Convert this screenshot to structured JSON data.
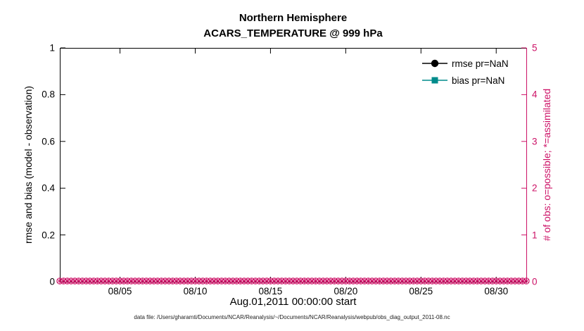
{
  "chart_data": {
    "type": "line",
    "title": "Northern Hemisphere",
    "subtitle": "ACARS_TEMPERATURE @ 999 hPa",
    "xlabel": "Aug.01,2011 00:00:00 start",
    "x_axis": {
      "range_days": [
        0,
        31
      ],
      "start_label": "Aug.01,2011 00:00:00",
      "tick_days": [
        4,
        9,
        14,
        19,
        24,
        29
      ],
      "tick_labels": [
        "08/05",
        "08/10",
        "08/15",
        "08/20",
        "08/25",
        "08/30"
      ]
    },
    "left_axis": {
      "ylabel": "rmse and bias (model - observation)",
      "ylim": [
        0,
        1
      ],
      "tick_values": [
        0,
        0.2,
        0.4,
        0.6,
        0.8,
        1
      ],
      "tick_labels": [
        "0",
        "0.2",
        "0.4",
        "0.6",
        "0.8",
        "1"
      ],
      "color": "#000000"
    },
    "right_axis": {
      "ylabel": "# of obs: o=possible; *=assimilated",
      "ylim": [
        0,
        5
      ],
      "tick_values": [
        0,
        1,
        2,
        3,
        4,
        5
      ],
      "tick_labels": [
        "0",
        "1",
        "2",
        "3",
        "4",
        "5"
      ],
      "color": "#CC1166"
    },
    "legend": [
      {
        "label": "rmse pr=NaN",
        "color": "#000000",
        "marker": "circle",
        "axis": "left"
      },
      {
        "label": "bias pr=NaN",
        "color": "#008B8B",
        "marker": "square",
        "axis": "left"
      }
    ],
    "series": [
      {
        "name": "rmse",
        "axis": "left",
        "values": null,
        "note": "all NaN, nothing plotted"
      },
      {
        "name": "bias",
        "axis": "left",
        "values": null,
        "note": "all NaN, nothing plotted"
      },
      {
        "name": "possible obs",
        "axis": "right",
        "marker": "o",
        "constant_value": 0,
        "points": 125
      },
      {
        "name": "assimilated obs",
        "axis": "right",
        "marker": "*",
        "constant_value": 0,
        "points": 125
      }
    ],
    "obs_points": 125,
    "grid": false,
    "legend_position": "top-right-inside"
  },
  "footer": "data file: /Users/gharamti/Documents/NCAR/Reanalysis/~/Documents/NCAR/Reanalysis/webpub/obs_diag_output_2011-08.nc"
}
